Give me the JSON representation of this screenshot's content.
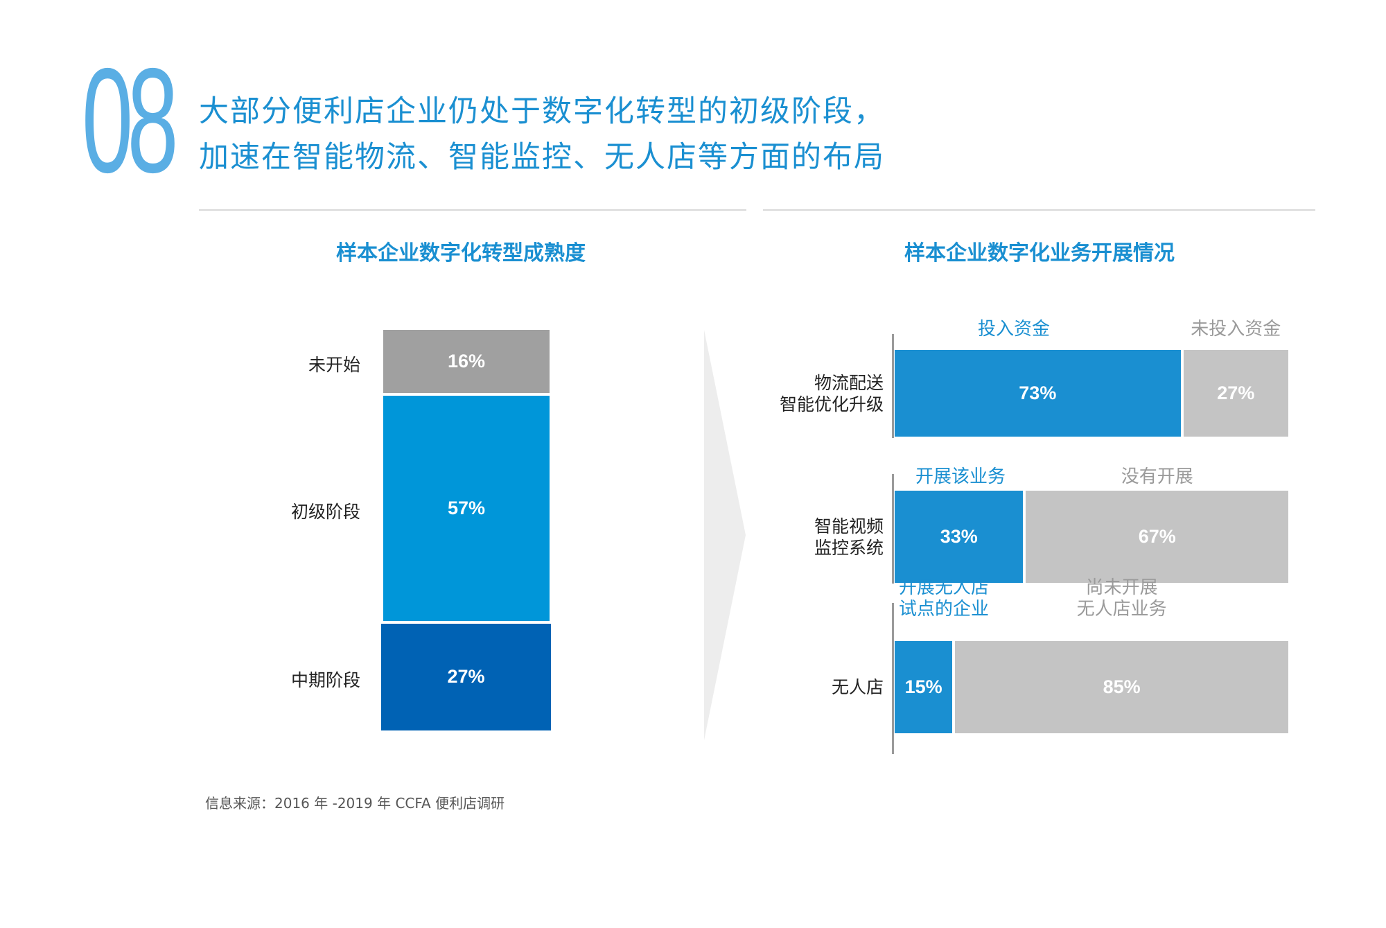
{
  "page_number": "08",
  "headline": {
    "line1": "大部分便利店企业仍处于数字化转型的初级阶段，",
    "line2": "加速在智能物流、智能监控、无人店等方面的布局"
  },
  "colors": {
    "accent": "#1a8fd1",
    "dark_blue": "#0062b4",
    "mid_blue": "#0096d9",
    "gray": "#a0a0a0",
    "light_gray": "#c4c4c4"
  },
  "chart_data": [
    {
      "type": "bar",
      "title": "样本企业数字化转型成熟度",
      "categories": [
        "未开始",
        "初级阶段",
        "中期阶段"
      ],
      "values": [
        16,
        57,
        27
      ],
      "value_labels": [
        "16%",
        "57%",
        "27%"
      ],
      "unit": "%",
      "stacked": true,
      "orientation": "vertical"
    },
    {
      "type": "bar",
      "title": "样本企业数字化业务开展情况",
      "orientation": "horizontal",
      "stacked": true,
      "unit": "%",
      "categories": [
        "物流配送\n智能优化升级",
        "智能视频\n监控系统",
        "无人店"
      ],
      "category_lines": [
        [
          "物流配送",
          "智能优化升级"
        ],
        [
          "智能视频",
          "监控系统"
        ],
        [
          "无人店"
        ]
      ],
      "series_legends": [
        {
          "positive": [
            "投入资金"
          ],
          "negative": [
            "未投入资金"
          ]
        },
        {
          "positive": [
            "开展该业务"
          ],
          "negative": [
            "没有开展"
          ]
        },
        {
          "positive": [
            "开展无人店",
            "试点的企业"
          ],
          "negative": [
            "尚未开展",
            "无人店业务"
          ]
        }
      ],
      "positive_values": [
        73,
        33,
        15
      ],
      "negative_values": [
        27,
        67,
        85
      ],
      "positive_labels": [
        "73%",
        "33%",
        "15%"
      ],
      "negative_labels": [
        "27%",
        "67%",
        "85%"
      ]
    }
  ],
  "source_note": "信息来源：2016 年 -2019 年 CCFA 便利店调研"
}
